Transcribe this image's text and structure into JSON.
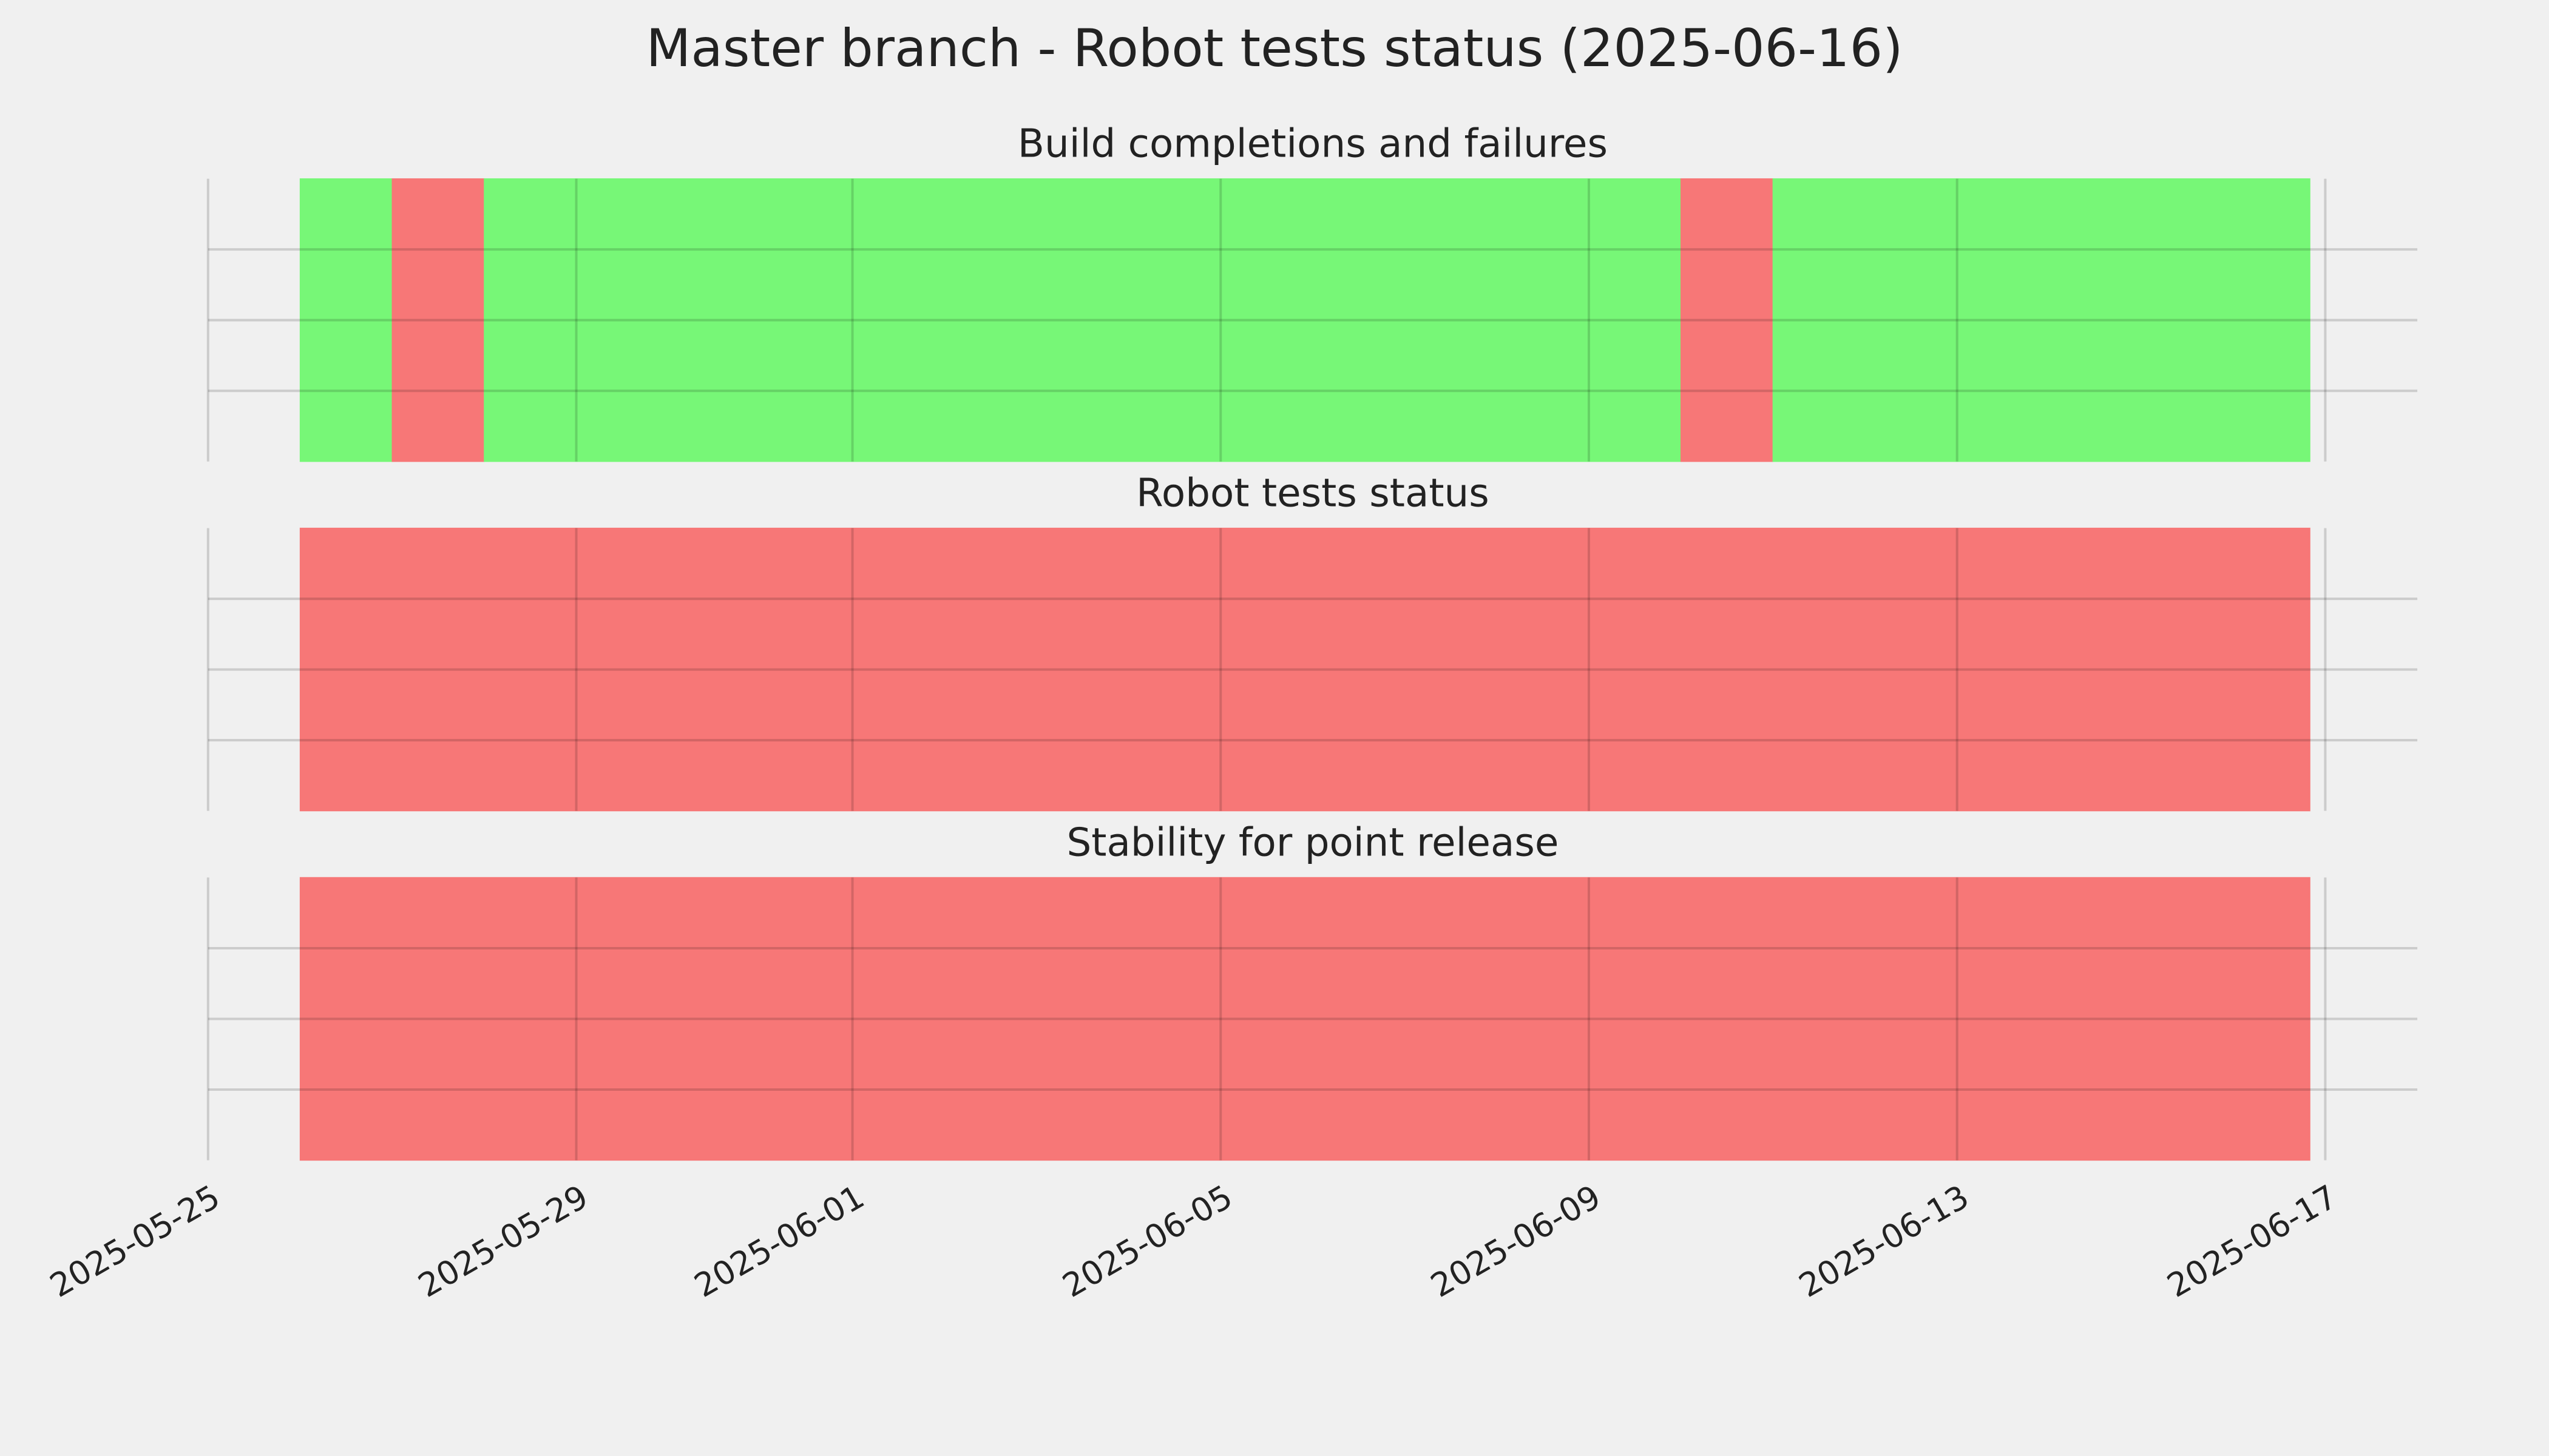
{
  "title": "Master branch - Robot tests status (2025-06-16)",
  "chart_data": [
    {
      "type": "timeline",
      "title": "Build completions and failures",
      "spans": [
        {
          "start": "2025-05-26",
          "end": "2025-05-27",
          "color": "#77f777"
        },
        {
          "start": "2025-05-27",
          "end": "2025-05-28",
          "color": "#f77777"
        },
        {
          "start": "2025-05-28",
          "end": "2025-06-10",
          "color": "#77f777"
        },
        {
          "start": "2025-06-10",
          "end": "2025-06-11",
          "color": "#f77777"
        },
        {
          "start": "2025-06-11",
          "end": "2025-06-16T20:00:00Z",
          "color": "#77f777"
        }
      ],
      "xlim": [
        "2025-05-25",
        "2025-06-18"
      ],
      "ylim": [
        0,
        1
      ],
      "yticks": [
        0.25,
        0.5,
        0.75
      ],
      "grid": true
    },
    {
      "type": "timeline",
      "title": "Robot tests status",
      "spans": [
        {
          "start": "2025-05-26",
          "end": "2025-06-16T20:00:00Z",
          "color": "#f77777"
        }
      ],
      "xlim": [
        "2025-05-25",
        "2025-06-18"
      ],
      "ylim": [
        0,
        1
      ],
      "yticks": [
        0.25,
        0.5,
        0.75
      ],
      "grid": true
    },
    {
      "type": "timeline",
      "title": "Stability for point release",
      "spans": [
        {
          "start": "2025-05-26",
          "end": "2025-06-16T20:00:00Z",
          "color": "#f77777"
        }
      ],
      "xlim": [
        "2025-05-25",
        "2025-06-18"
      ],
      "ylim": [
        0,
        1
      ],
      "yticks": [
        0.25,
        0.5,
        0.75
      ],
      "grid": true,
      "xticks": [
        "2025-05-25",
        "2025-05-29",
        "2025-06-01",
        "2025-06-05",
        "2025-06-09",
        "2025-06-13",
        "2025-06-17"
      ]
    }
  ]
}
